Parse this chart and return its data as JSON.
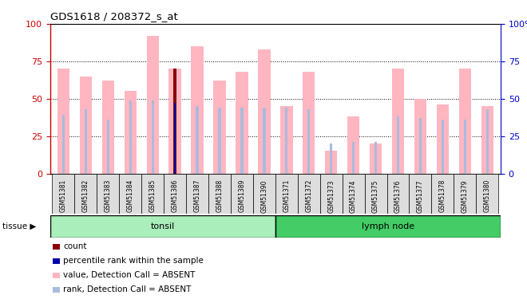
{
  "title": "GDS1618 / 208372_s_at",
  "samples": [
    "GSM51381",
    "GSM51382",
    "GSM51383",
    "GSM51384",
    "GSM51385",
    "GSM51386",
    "GSM51387",
    "GSM51388",
    "GSM51389",
    "GSM51390",
    "GSM51371",
    "GSM51372",
    "GSM51373",
    "GSM51374",
    "GSM51375",
    "GSM51376",
    "GSM51377",
    "GSM51378",
    "GSM51379",
    "GSM51380"
  ],
  "value_absent": [
    70,
    65,
    62,
    55,
    92,
    70,
    85,
    62,
    68,
    83,
    45,
    68,
    15,
    38,
    20,
    70,
    50,
    46,
    70,
    45
  ],
  "rank_absent": [
    39,
    43,
    36,
    49,
    49,
    47,
    45,
    44,
    44,
    44,
    44,
    43,
    20,
    21,
    21,
    38,
    37,
    36,
    36,
    43
  ],
  "count_bar_idx": 5,
  "count_bar_val": 70,
  "rank_bar_val": 47,
  "tonsil_count": 10,
  "lymph_count": 10,
  "ylim": [
    0,
    100
  ],
  "yticks": [
    0,
    25,
    50,
    75,
    100
  ],
  "grid_values": [
    25,
    50,
    75
  ],
  "left_axis_color": "#CC0000",
  "right_axis_color": "#0000CC",
  "absent_bar_color": "#FFB6C1",
  "rank_bar_color": "#AABBDD",
  "count_bar_color": "#880000",
  "rank_highlight_color": "#0000AA",
  "tonsil_color": "#AAEEBB",
  "lymph_color": "#44CC66",
  "legend_items": [
    {
      "color": "#880000",
      "label": "count"
    },
    {
      "color": "#0000AA",
      "label": "percentile rank within the sample"
    },
    {
      "color": "#FFB6C1",
      "label": "value, Detection Call = ABSENT"
    },
    {
      "color": "#AABBDD",
      "label": "rank, Detection Call = ABSENT"
    }
  ]
}
